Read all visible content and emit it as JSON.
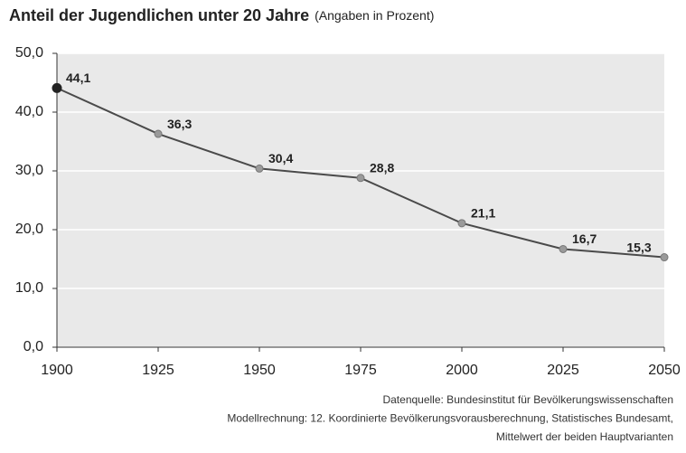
{
  "chart_data": {
    "type": "line",
    "title": "Anteil der Jugendlichen unter 20 Jahre",
    "subtitle": "(Angaben in Prozent)",
    "x": [
      1900,
      1925,
      1950,
      1975,
      2000,
      2025,
      2050
    ],
    "values": [
      44.1,
      36.3,
      30.4,
      28.8,
      21.1,
      16.7,
      15.3
    ],
    "value_labels": [
      "44,1",
      "36,3",
      "30,4",
      "28,8",
      "21,1",
      "16,7",
      "15,3"
    ],
    "color": "#4a4a4a",
    "xlim": [
      1900,
      2050
    ],
    "xticks": [
      1900,
      1925,
      1950,
      1975,
      2000,
      2025,
      2050
    ],
    "ylim": [
      0,
      50
    ],
    "yticks": [
      {
        "value": 0,
        "label": "0,0"
      },
      {
        "value": 10,
        "label": "10,0"
      },
      {
        "value": 20,
        "label": "20,0"
      },
      {
        "value": 30,
        "label": "30,0"
      },
      {
        "value": 40,
        "label": "40,0"
      },
      {
        "value": 50,
        "label": "50,0"
      }
    ],
    "grid": true,
    "source": [
      "Datenquelle: Bundesinstitut für Bevölkerungswissenschaften",
      "Modellrechnung: 12. Koordinierte Bevölkerungsvorausberechnung, Statistisches Bundesamt,",
      "Mittelwert der beiden Hauptvarianten"
    ]
  }
}
